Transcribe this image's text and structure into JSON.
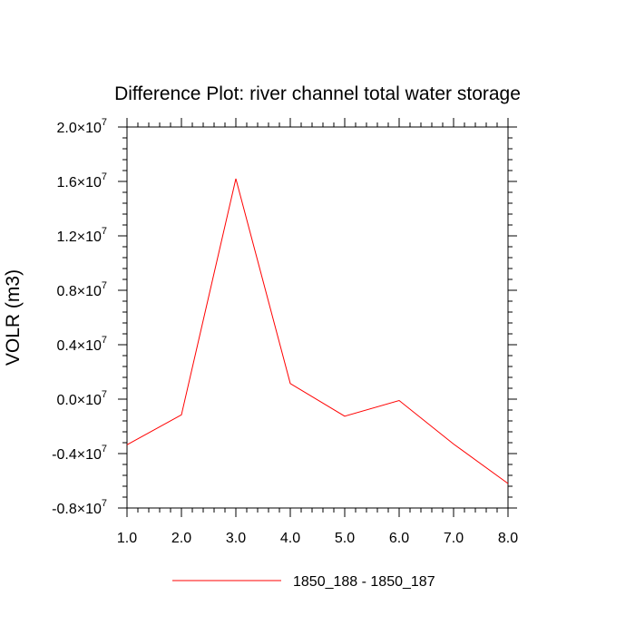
{
  "chart_data": {
    "type": "line",
    "title": "Difference Plot: river channel total water storage",
    "xlabel": "",
    "ylabel": "VOLR  (m3)",
    "xlim": [
      1.0,
      8.0
    ],
    "ylim": [
      -8000000,
      20000000
    ],
    "x_ticks": [
      {
        "value": 1.0,
        "label": "1.0"
      },
      {
        "value": 2.0,
        "label": "2.0"
      },
      {
        "value": 3.0,
        "label": "3.0"
      },
      {
        "value": 4.0,
        "label": "4.0"
      },
      {
        "value": 5.0,
        "label": "5.0"
      },
      {
        "value": 6.0,
        "label": "6.0"
      },
      {
        "value": 7.0,
        "label": "7.0"
      },
      {
        "value": 8.0,
        "label": "8.0"
      }
    ],
    "y_ticks": [
      {
        "value": -8000000,
        "mantissa": "-0.8"
      },
      {
        "value": -4000000,
        "mantissa": "-0.4"
      },
      {
        "value": 0,
        "mantissa": "0.0"
      },
      {
        "value": 4000000,
        "mantissa": "0.4"
      },
      {
        "value": 8000000,
        "mantissa": "0.8"
      },
      {
        "value": 12000000,
        "mantissa": "1.2"
      },
      {
        "value": 16000000,
        "mantissa": "1.6"
      },
      {
        "value": 20000000,
        "mantissa": "2.0"
      }
    ],
    "y_tick_base": "10",
    "y_tick_exponent": "7",
    "grid": false,
    "legend_position": "bottom",
    "series": [
      {
        "name": "1850_188 - 1850_187",
        "color": "#ff0000",
        "x": [
          1.0,
          2.0,
          3.0,
          4.0,
          5.0,
          6.0,
          7.0,
          8.0
        ],
        "y": [
          -3350000,
          -1150000,
          16200000,
          1150000,
          -1250000,
          -100000,
          -3300000,
          -6200000
        ]
      }
    ]
  }
}
